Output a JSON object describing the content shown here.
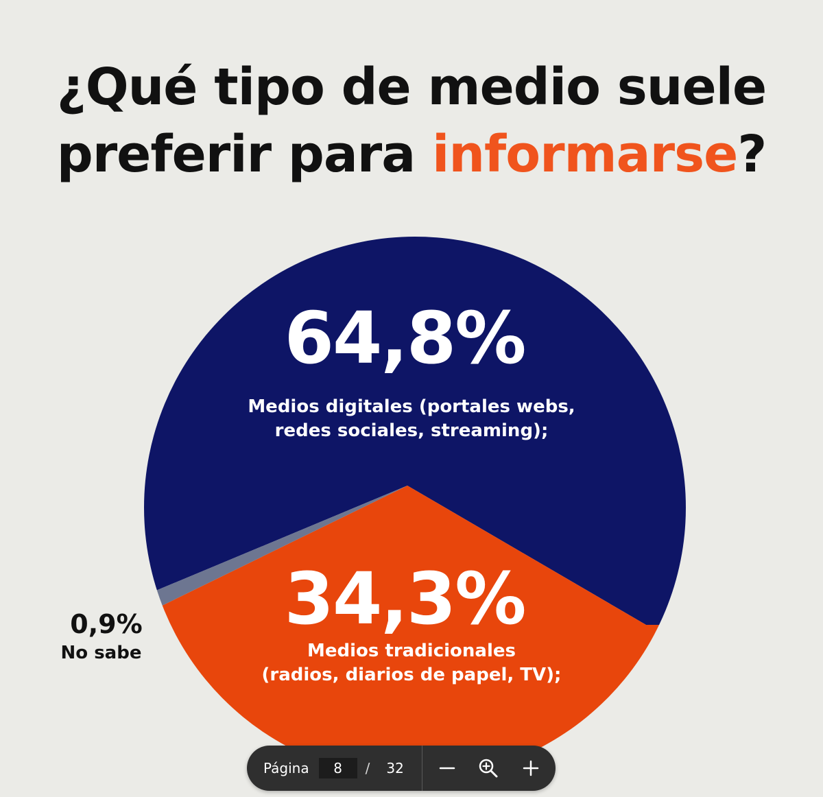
{
  "title": {
    "line1": "¿Qué tipo de medio suele",
    "line2_prefix": "preferir para ",
    "line2_highlight": "informarse",
    "line2_suffix": "?"
  },
  "colors": {
    "background": "#ebebe7",
    "title_text": "#111111",
    "highlight": "#f0541d",
    "digital": "#0e1566",
    "traditional": "#e8460c",
    "no_sabe": "#6d7691"
  },
  "chart_data": {
    "type": "pie",
    "slices": [
      {
        "label": "Medios digitales (portales webs, redes sociales, streaming);",
        "value": 64.8,
        "display": "64,8%",
        "color": "#0e1566"
      },
      {
        "label": "Medios tradicionales (radios, diarios de papel, TV);",
        "value": 34.3,
        "display": "34,3%",
        "color": "#e8460c"
      },
      {
        "label": "No sabe",
        "value": 0.9,
        "display": "0,9%",
        "color": "#6d7691"
      }
    ]
  },
  "labels": {
    "digital_pct": "64,8%",
    "digital_line1": "Medios digitales (portales webs,",
    "digital_line2": "redes sociales, streaming);",
    "traditional_pct": "34,3%",
    "traditional_line1": "Medios tradicionales",
    "traditional_line2": "(radios, diarios de papel, TV);",
    "nosabe_pct": "0,9%",
    "nosabe_label": "No sabe"
  },
  "pager": {
    "label": "Página",
    "current_page": "8",
    "separator": "/",
    "total_pages": "32",
    "zoom_out_icon": "minus-icon",
    "zoom_icon": "zoom-in-icon",
    "zoom_in_icon": "plus-icon"
  }
}
